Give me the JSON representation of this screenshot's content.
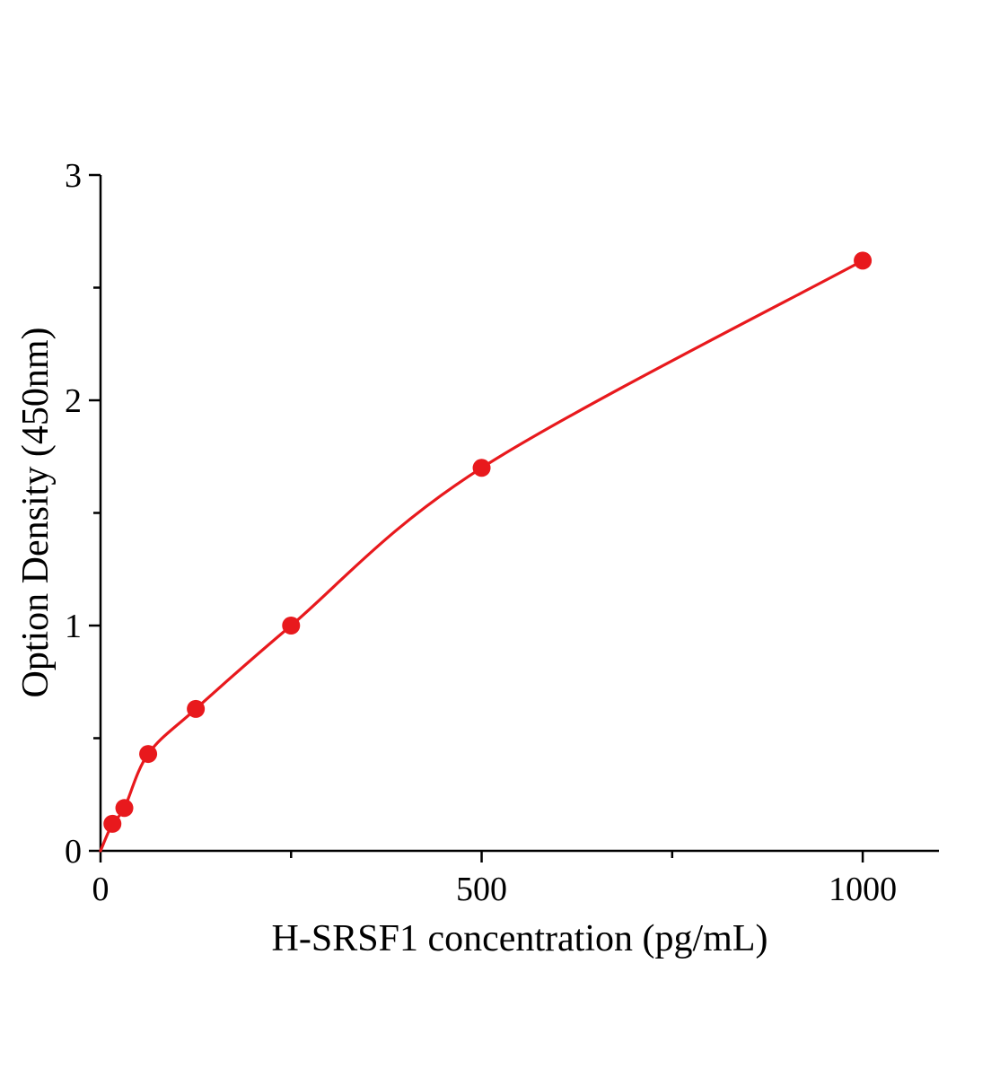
{
  "figure": {
    "background_color": "#ffffff"
  },
  "chart_data": {
    "type": "scatter",
    "title": "",
    "xlabel": "H-SRSF1 concentration (pg/mL)",
    "ylabel": "Option Density (450nm)",
    "x": [
      15.6,
      31.25,
      62.5,
      125,
      250,
      500,
      1000
    ],
    "y": [
      0.12,
      0.19,
      0.43,
      0.63,
      1.0,
      1.7,
      2.62
    ],
    "curve_style": "smooth",
    "curve_through_origin": true,
    "xlim": [
      0,
      1100
    ],
    "ylim": [
      0,
      3
    ],
    "x_major_ticks": [
      0,
      500,
      1000
    ],
    "x_minor_ticks": [
      250,
      750
    ],
    "y_major_ticks": [
      0,
      1,
      2,
      3
    ],
    "y_minor_ticks": [
      0.5,
      1.5,
      2.5
    ],
    "grid": false,
    "legend": false,
    "line_color": "#e8191d",
    "marker_color": "#e8191d",
    "marker": "circle",
    "axis_color": "#000000"
  }
}
